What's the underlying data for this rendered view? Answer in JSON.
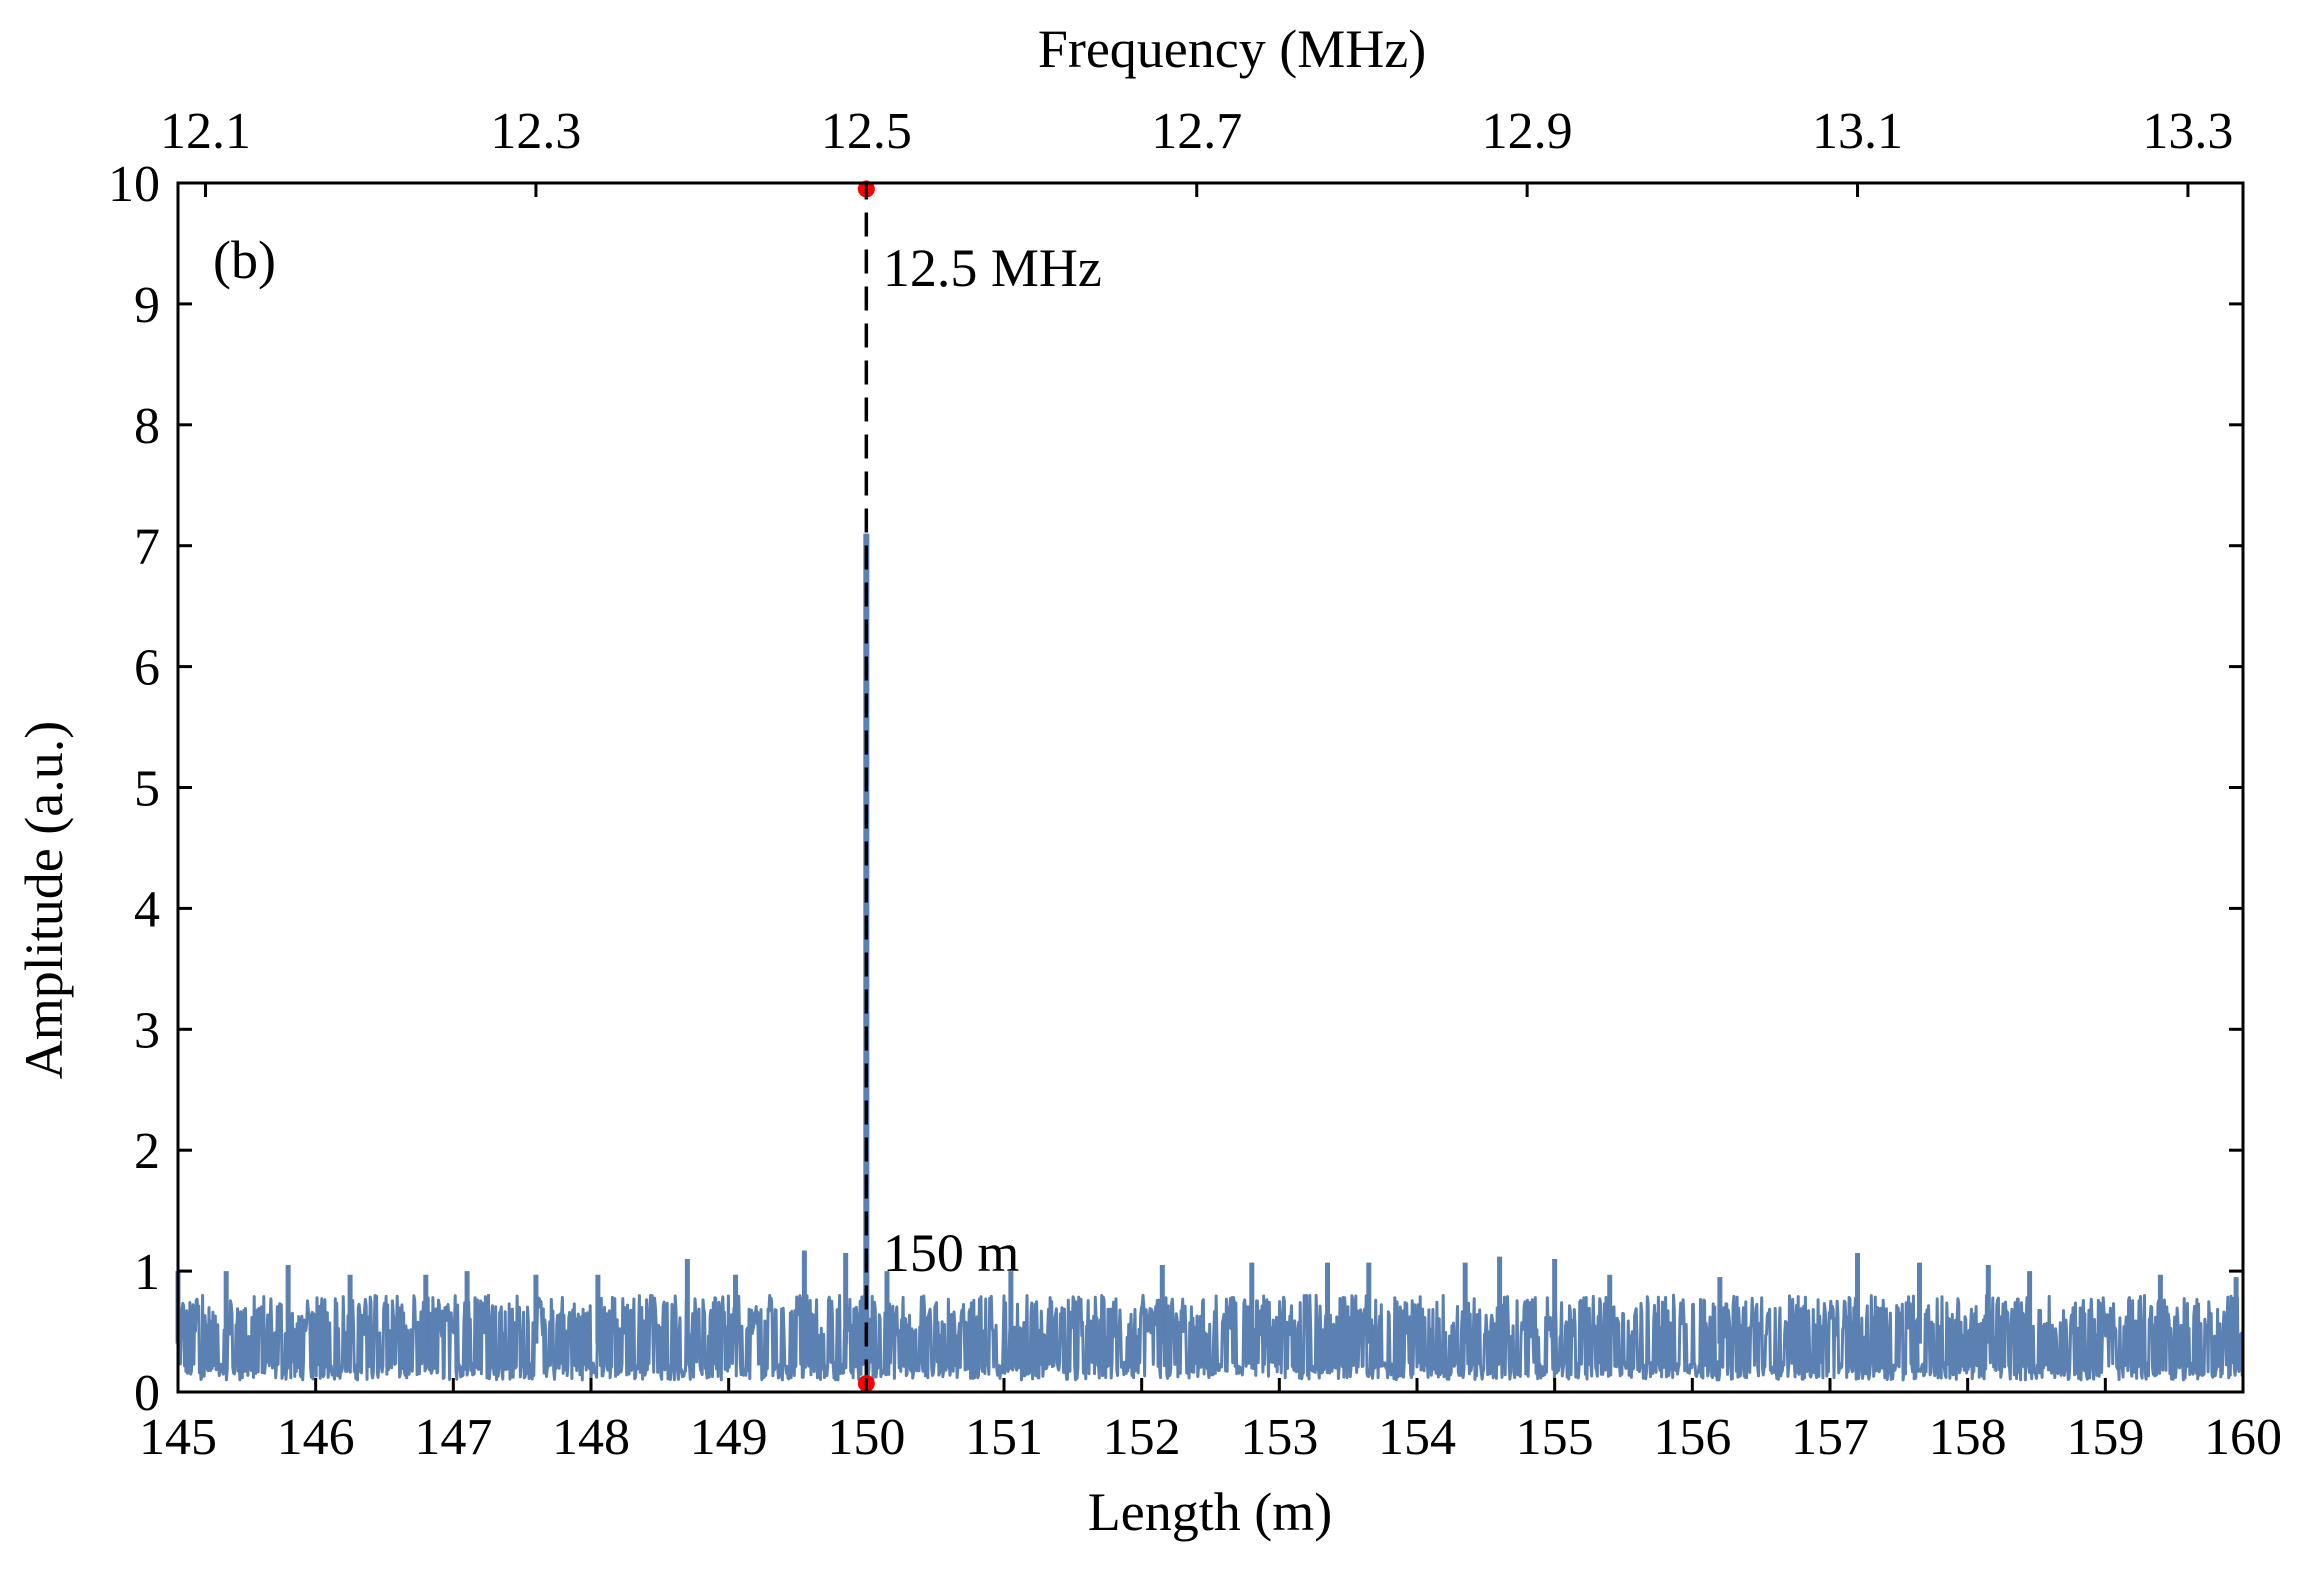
{
  "chart_data": {
    "type": "line",
    "panel_label": "(b)",
    "xlabel": "Length (m)",
    "ylabel": "Amplitude (a.u.)",
    "x2label": "Frequency (MHz)",
    "xlim": [
      145,
      160
    ],
    "ylim": [
      0,
      10
    ],
    "xticks": [
      145,
      146,
      147,
      148,
      149,
      150,
      151,
      152,
      153,
      154,
      155,
      156,
      157,
      158,
      159,
      160
    ],
    "yticks": [
      0,
      1,
      2,
      3,
      4,
      5,
      6,
      7,
      8,
      9,
      10
    ],
    "x2ticks": [
      "12.1",
      "12.3",
      "12.5",
      "12.7",
      "12.9",
      "13.1",
      "13.3"
    ],
    "x2_to_x_scale": 12,
    "grid": false,
    "series": [
      {
        "color": "#5b80b2",
        "noise_floor_level": [
          0.1,
          0.8
        ],
        "spikes": [
          {
            "x": 145.0,
            "y": 1.0
          },
          {
            "x": 145.35,
            "y": 1.0
          },
          {
            "x": 145.8,
            "y": 1.05
          },
          {
            "x": 146.25,
            "y": 0.97
          },
          {
            "x": 146.8,
            "y": 0.97
          },
          {
            "x": 147.1,
            "y": 1.0
          },
          {
            "x": 147.6,
            "y": 0.97
          },
          {
            "x": 148.05,
            "y": 0.97
          },
          {
            "x": 148.7,
            "y": 1.1
          },
          {
            "x": 149.05,
            "y": 0.97
          },
          {
            "x": 149.55,
            "y": 1.17
          },
          {
            "x": 149.85,
            "y": 1.15
          },
          {
            "x": 150.0,
            "y": 7.1
          },
          {
            "x": 150.15,
            "y": 1.0
          },
          {
            "x": 151.05,
            "y": 1.0
          },
          {
            "x": 152.15,
            "y": 1.05
          },
          {
            "x": 152.8,
            "y": 1.07
          },
          {
            "x": 153.35,
            "y": 1.07
          },
          {
            "x": 153.65,
            "y": 1.07
          },
          {
            "x": 154.35,
            "y": 1.07
          },
          {
            "x": 154.6,
            "y": 1.12
          },
          {
            "x": 155.0,
            "y": 1.1
          },
          {
            "x": 155.4,
            "y": 0.97
          },
          {
            "x": 156.2,
            "y": 0.95
          },
          {
            "x": 157.2,
            "y": 1.15
          },
          {
            "x": 157.65,
            "y": 1.07
          },
          {
            "x": 158.15,
            "y": 1.05
          },
          {
            "x": 158.45,
            "y": 1.0
          },
          {
            "x": 159.4,
            "y": 0.97
          },
          {
            "x": 159.95,
            "y": 0.95
          }
        ]
      }
    ],
    "marker_line": {
      "x": 150,
      "y_from": 0.07,
      "y_to": 9.95,
      "style": "dashed",
      "color": "#000000"
    },
    "markers": [
      {
        "x": 150,
        "y": 9.95,
        "color": "#ff0000"
      },
      {
        "x": 150,
        "y": 0.07,
        "color": "#ff0000"
      }
    ],
    "annotations": [
      {
        "text": "12.5 MHz",
        "x": 150.12,
        "y": 9.15
      },
      {
        "text": "150 m",
        "x": 150.12,
        "y": 1.0
      }
    ]
  }
}
